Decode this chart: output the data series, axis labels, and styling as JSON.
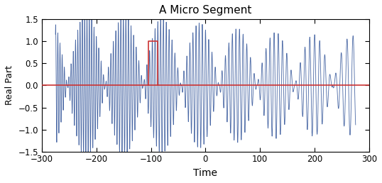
{
  "title": "A Micro Segment",
  "xlabel": "Time",
  "ylabel": "Real Part",
  "xlim": [
    -300,
    300
  ],
  "ylim": [
    -1.5,
    1.5
  ],
  "yticks": [
    -1.5,
    -1,
    -0.5,
    0,
    0.5,
    1,
    1.5
  ],
  "xticks": [
    -300,
    -200,
    -100,
    0,
    100,
    200,
    300
  ],
  "signal_color": "#4060a0",
  "rect_color": "#cc3333",
  "background_color": "#ffffff",
  "Q": 10,
  "P": 8,
  "rect_x1": -105,
  "rect_x2": -88,
  "rect_y1": 0.0,
  "rect_y2": 1.0,
  "t_start": -275,
  "t_end": 275,
  "num_points": 10000
}
